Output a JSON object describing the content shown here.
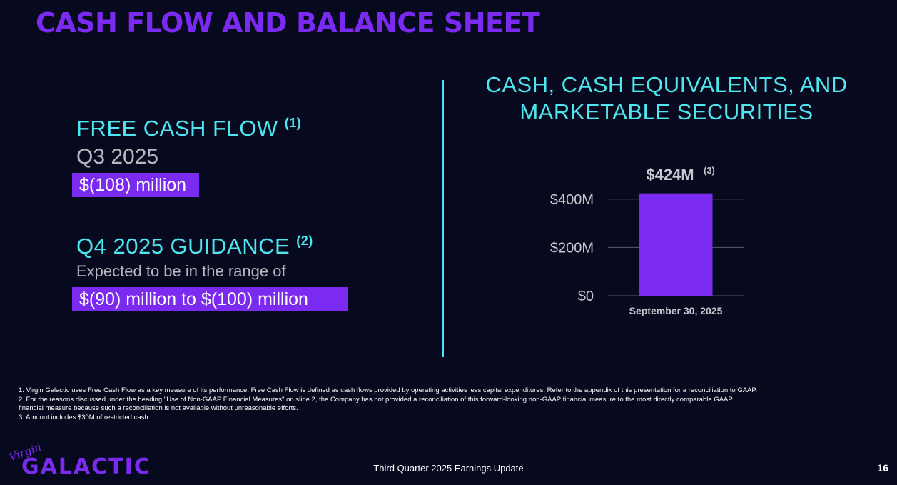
{
  "slide": {
    "title": "CASH FLOW AND BALANCE SHEET",
    "footer_text": "Third Quarter 2025 Earnings Update",
    "page_number": "16"
  },
  "left": {
    "fcf_heading": "FREE CASH FLOW",
    "fcf_note": "(1)",
    "quarter": "Q3 2025",
    "fcf_value": "$(108) million",
    "guidance_heading": "Q4 2025 GUIDANCE",
    "guidance_note": "(2)",
    "guidance_sub": "Expected to be in the range of",
    "guidance_range": "$(90) million to $(100) million"
  },
  "right": {
    "title_line1": "CASH, CASH EQUIVALENTS, AND",
    "title_line2": "MARKETABLE SECURITIES"
  },
  "chart_data": {
    "type": "bar",
    "categories": [
      "September 30, 2025"
    ],
    "values": [
      424
    ],
    "value_label": "$424M",
    "value_note": "(3)",
    "yticks": [
      0,
      200,
      400
    ],
    "ytick_labels": [
      "$0",
      "$200M",
      "$400M"
    ],
    "ylim": [
      0,
      500
    ],
    "grid": true,
    "color": "#7b2bf0"
  },
  "footnotes": [
    "1. Virgin Galactic uses Free Cash Flow as a key measure of its performance. Free Cash Flow is defined as cash flows provided by operating activities less capital expenditures. Refer to the appendix of this presentation for a reconciliation to GAAP.",
    "2. For the reasons discussed under the heading \"Use of Non-GAAP Financial Measures\" on slide 2, the Company has not provided a reconciliation of this forward-looking non-GAAP financial measure to the most directly comparable GAAP",
    "financial measure because such a  reconciliation is not available without unreasonable efforts.",
    "3. Amount includes $30M of restricted cash."
  ],
  "logo": {
    "virgin": "Virgin",
    "galactic": "GALACTIC"
  },
  "colors": {
    "background": "#070a1f",
    "accent_purple": "#7b2bf0",
    "accent_cyan": "#4fe6ef"
  }
}
